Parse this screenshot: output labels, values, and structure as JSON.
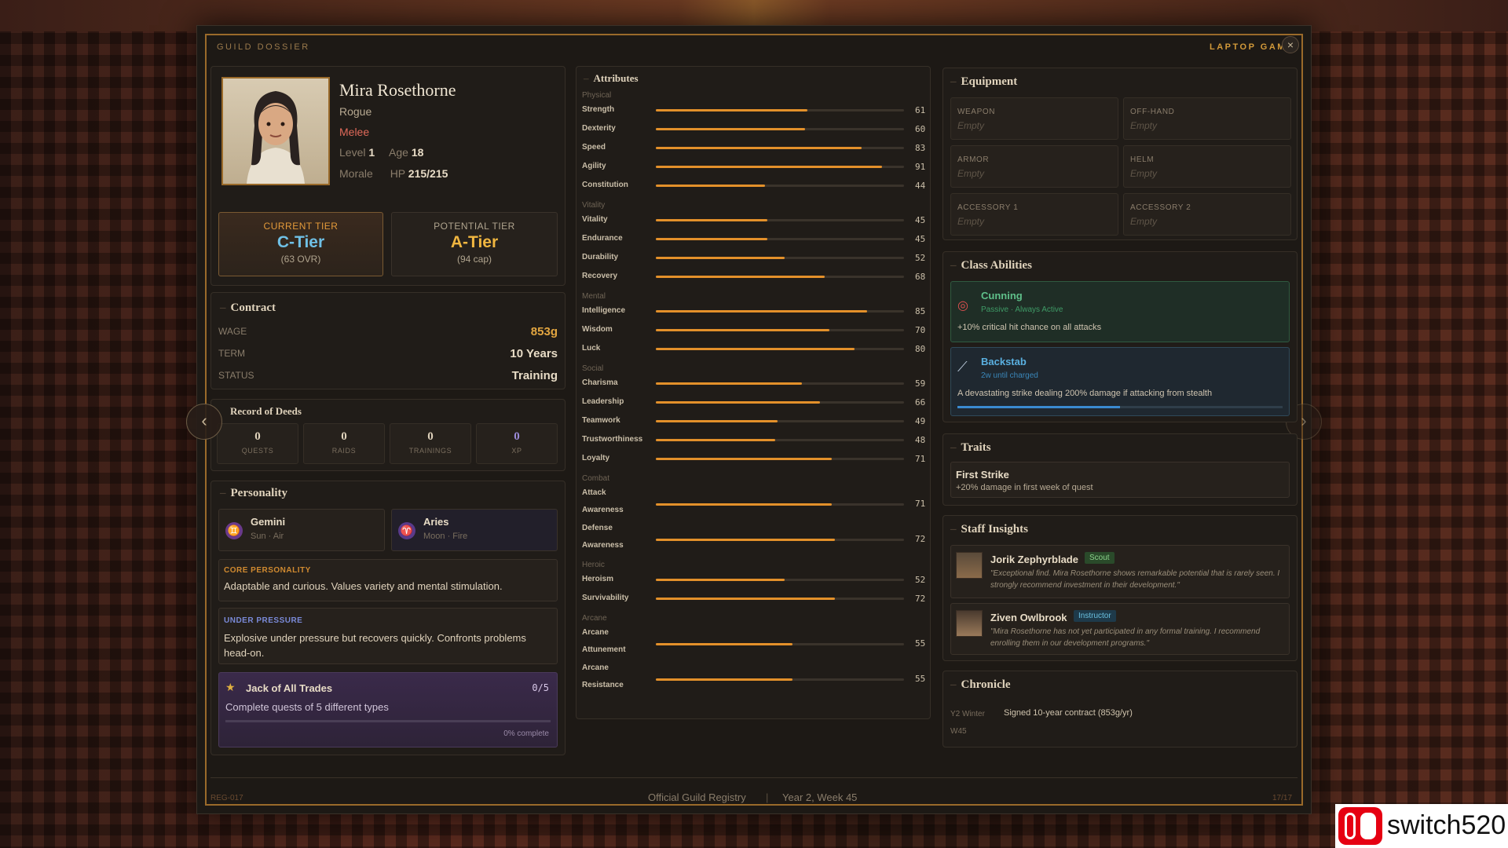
{
  "header": {
    "left": "GUILD DOSSIER",
    "right": "LAPTOP GAM",
    "close": "×"
  },
  "profile": {
    "name": "Mira Rosethorne",
    "class": "Rogue",
    "style": "Melee",
    "level_label": "Level",
    "level": "1",
    "age_label": "Age",
    "age": "18",
    "morale_label": "Morale",
    "hp_label": "HP",
    "hp": "215/215"
  },
  "tiers": {
    "current_label": "CURRENT TIER",
    "current": "C-Tier",
    "current_sub": "(63 OVR)",
    "potential_label": "POTENTIAL TIER",
    "potential": "A-Tier",
    "potential_sub": "(94 cap)"
  },
  "contract": {
    "title": "Contract",
    "wage_label": "WAGE",
    "wage": "853g",
    "term_label": "TERM",
    "term": "10 Years",
    "status_label": "STATUS",
    "status": "Training"
  },
  "deeds": {
    "title": "Record of Deeds",
    "items": [
      {
        "n": "0",
        "l": "QUESTS"
      },
      {
        "n": "0",
        "l": "RAIDS"
      },
      {
        "n": "0",
        "l": "TRAININGS"
      },
      {
        "n": "0",
        "l": "XP"
      }
    ]
  },
  "personality": {
    "title": "Personality",
    "signs": [
      {
        "name": "Gemini",
        "sub": "Sun · Air",
        "glyph": "♊"
      },
      {
        "name": "Aries",
        "sub": "Moon · Fire",
        "glyph": "♈"
      }
    ],
    "core_label": "CORE PERSONALITY",
    "core": "Adaptable and curious. Values variety and mental stimulation.",
    "pressure_label": "UNDER PRESSURE",
    "pressure": "Explosive under pressure but recovers quickly. Confronts problems head-on.",
    "challenge": {
      "title": "Jack of All Trades",
      "count": "0/5",
      "desc": "Complete quests of 5 different types",
      "progress_text": "0% complete",
      "progress": 0
    }
  },
  "attributes": {
    "title": "Attributes",
    "max": 100,
    "groups": [
      {
        "name": "Physical",
        "items": [
          {
            "name": "Strength",
            "value": 61
          },
          {
            "name": "Dexterity",
            "value": 60
          },
          {
            "name": "Speed",
            "value": 83
          },
          {
            "name": "Agility",
            "value": 91
          },
          {
            "name": "Constitution",
            "value": 44
          }
        ]
      },
      {
        "name": "Vitality",
        "items": [
          {
            "name": "Vitality",
            "value": 45
          },
          {
            "name": "Endurance",
            "value": 45
          },
          {
            "name": "Durability",
            "value": 52
          },
          {
            "name": "Recovery",
            "value": 68
          }
        ]
      },
      {
        "name": "Mental",
        "items": [
          {
            "name": "Intelligence",
            "value": 85
          },
          {
            "name": "Wisdom",
            "value": 70
          },
          {
            "name": "Luck",
            "value": 80
          }
        ]
      },
      {
        "name": "Social",
        "items": [
          {
            "name": "Charisma",
            "value": 59
          },
          {
            "name": "Leadership",
            "value": 66
          },
          {
            "name": "Teamwork",
            "value": 49
          },
          {
            "name": "Trustworthiness",
            "value": 48
          },
          {
            "name": "Loyalty",
            "value": 71
          }
        ]
      },
      {
        "name": "Combat",
        "items": [
          {
            "name": "Attack Awareness",
            "value": 71
          },
          {
            "name": "Defense Awareness",
            "value": 72
          }
        ]
      },
      {
        "name": "Heroic",
        "items": [
          {
            "name": "Heroism",
            "value": 52
          },
          {
            "name": "Survivability",
            "value": 72
          }
        ]
      },
      {
        "name": "Arcane",
        "items": [
          {
            "name": "Arcane Attunement",
            "value": 55
          },
          {
            "name": "Arcane Resistance",
            "value": 55
          }
        ]
      }
    ]
  },
  "equipment": {
    "title": "Equipment",
    "empty": "Empty",
    "slots": [
      "WEAPON",
      "OFF-HAND",
      "ARMOR",
      "HELM",
      "ACCESSORY 1",
      "ACCESSORY 2"
    ]
  },
  "abilities": {
    "title": "Class Abilities",
    "items": [
      {
        "name": "Cunning",
        "sub": "Passive · Always Active",
        "desc": "+10% critical hit chance on all attacks"
      },
      {
        "name": "Backstab",
        "sub": "2w until charged",
        "desc": "A devastating strike dealing 200% damage if attacking from stealth",
        "charge": 0.5
      }
    ]
  },
  "traits": {
    "title": "Traits",
    "items": [
      {
        "name": "First Strike",
        "desc": "+20% damage in first week of quest"
      }
    ]
  },
  "insights": {
    "title": "Staff Insights",
    "items": [
      {
        "name": "Jorik Zephyrblade",
        "role": "Scout",
        "quote": "\"Exceptional find. Mira Rosethorne shows remarkable potential that is rarely seen. I strongly recommend investment in their development.\""
      },
      {
        "name": "Ziven Owlbrook",
        "role": "Instructor",
        "quote": "\"Mira Rosethorne has not yet participated in any formal training. I recommend enrolling them in our development programs.\""
      }
    ]
  },
  "chronicle": {
    "title": "Chronicle",
    "entries": [
      {
        "date": "Y2 Winter W45",
        "text": "Signed 10-year contract (853g/yr)"
      }
    ]
  },
  "footer": {
    "left": "REG-017",
    "center": "Official Guild Registry",
    "sep": "|",
    "date": "Year 2, Week 45",
    "right": "17/17"
  },
  "watermark": "switch520",
  "colors": {
    "accent": "#e3902a",
    "current_tier": "#6fc0e6",
    "potential_tier": "#f0b640",
    "melee": "#e06a5a",
    "cunning": "#5fc08a",
    "backstab": "#5ab0e0"
  }
}
